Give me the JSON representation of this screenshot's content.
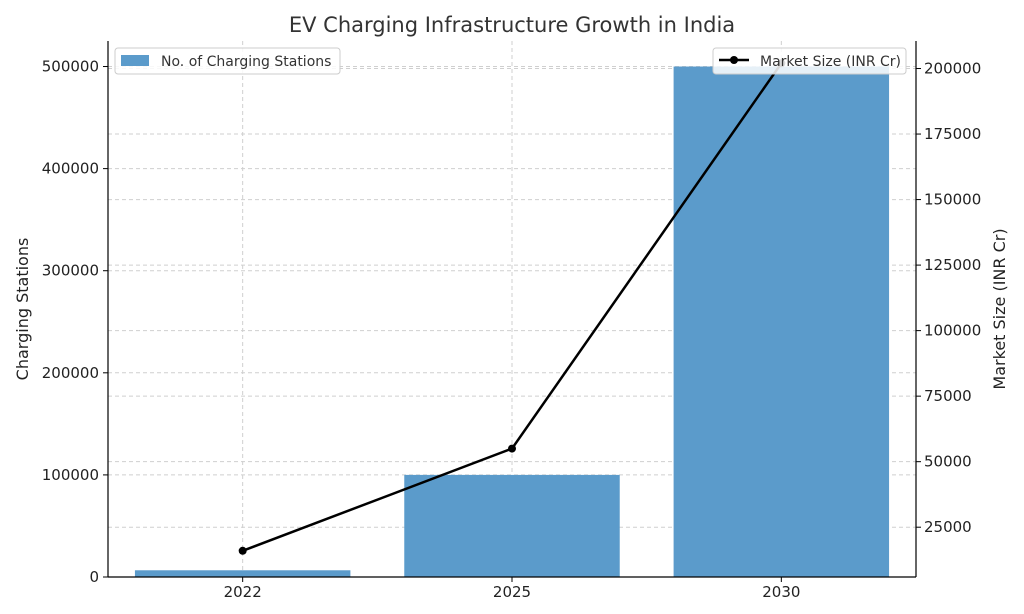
{
  "chart_data": {
    "type": "bar",
    "title": "EV Charging Infrastructure Growth in India",
    "categories": [
      "2022",
      "2025",
      "2030"
    ],
    "series": [
      {
        "name": "No. of Charging Stations",
        "type": "bar",
        "axis": "left",
        "color": "#5b9bcb",
        "values": [
          6586,
          100000,
          500000
        ]
      },
      {
        "name": "Market Size (INR Cr)",
        "type": "line",
        "axis": "right",
        "color": "#000000",
        "values": [
          16000,
          55000,
          202000
        ]
      }
    ],
    "ylabel": "Charging Stations",
    "ylim": [
      0,
      525000
    ],
    "yticks": [
      "0",
      "100000",
      "200000",
      "300000",
      "400000",
      "500000"
    ],
    "y2label": "Market Size (INR Cr)",
    "y2lim": [
      6000,
      210500
    ],
    "y2ticks": [
      "25000",
      "50000",
      "75000",
      "100000",
      "125000",
      "150000",
      "175000",
      "200000"
    ],
    "grid": true,
    "legend_left": "top-left",
    "legend_right": "top-right"
  }
}
